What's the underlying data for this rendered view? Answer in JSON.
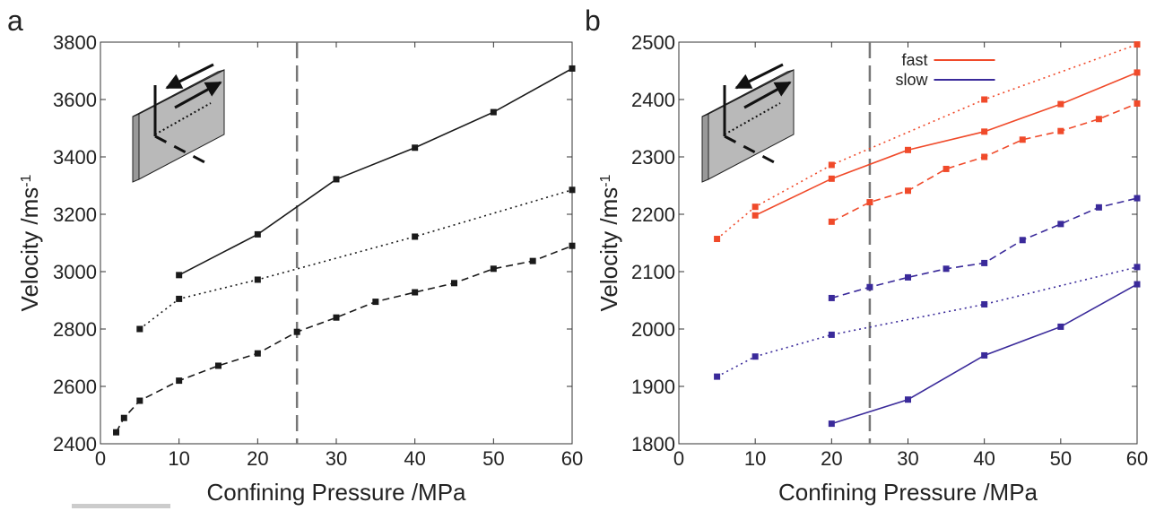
{
  "chart_data": [
    {
      "type": "line",
      "label": "a",
      "xlabel": "Confining Pressure /MPa",
      "ylabel": "Velocity /ms",
      "ylabel_superscript": "-1",
      "xlim": [
        0,
        60
      ],
      "ylim": [
        2400,
        3800
      ],
      "xticks": [
        0,
        10,
        20,
        30,
        40,
        50,
        60
      ],
      "yticks": [
        2400,
        2600,
        2800,
        3000,
        3200,
        3400,
        3600,
        3800
      ],
      "vline": 25,
      "series": [
        {
          "color": "#1a1a1a",
          "style": "solid",
          "x": [
            10,
            20,
            30,
            40,
            50,
            60
          ],
          "values": [
            2988,
            3130,
            3322,
            3432,
            3556,
            3708
          ]
        },
        {
          "color": "#1a1a1a",
          "style": "dotted",
          "x": [
            5,
            10,
            20,
            40,
            60
          ],
          "values": [
            2800,
            2905,
            2972,
            3122,
            3285
          ]
        },
        {
          "color": "#1a1a1a",
          "style": "dashed",
          "x": [
            2,
            3,
            5,
            10,
            15,
            20,
            25,
            30,
            35,
            40,
            45,
            50,
            55,
            60
          ],
          "values": [
            2440,
            2490,
            2550,
            2620,
            2672,
            2715,
            2790,
            2840,
            2895,
            2928,
            2960,
            3010,
            3037,
            3090
          ]
        }
      ]
    },
    {
      "type": "line",
      "label": "b",
      "xlabel": "Confining Pressure /MPa",
      "ylabel": "Velocity /ms",
      "ylabel_superscript": "-1",
      "xlim": [
        0,
        60
      ],
      "ylim": [
        1800,
        2500
      ],
      "xticks": [
        0,
        10,
        20,
        30,
        40,
        50,
        60
      ],
      "yticks": [
        1800,
        1900,
        2000,
        2100,
        2200,
        2300,
        2400,
        2500
      ],
      "vline": 25,
      "legend": "upper center",
      "series": [
        {
          "name": "fast",
          "color": "#f04a2a",
          "style": "solid",
          "x": [
            10,
            20,
            30,
            40,
            50,
            60
          ],
          "values": [
            2198,
            2262,
            2312,
            2344,
            2392,
            2447
          ]
        },
        {
          "color": "#f04a2a",
          "style": "dotted",
          "x": [
            5,
            10,
            20,
            40,
            60
          ],
          "values": [
            2157,
            2213,
            2286,
            2400,
            2496
          ]
        },
        {
          "color": "#f04a2a",
          "style": "dashed",
          "x": [
            20,
            25,
            30,
            35,
            40,
            45,
            50,
            55,
            60
          ],
          "values": [
            2187,
            2221,
            2241,
            2279,
            2300,
            2330,
            2345,
            2366,
            2393
          ]
        },
        {
          "name": "slow",
          "color": "#3a2a9a",
          "style": "solid",
          "x": [
            20,
            30,
            40,
            50,
            60
          ],
          "values": [
            1835,
            1877,
            1954,
            2004,
            2078
          ]
        },
        {
          "color": "#3a2a9a",
          "style": "dotted",
          "x": [
            5,
            10,
            20,
            40,
            60
          ],
          "values": [
            1917,
            1952,
            1990,
            2043,
            2108
          ]
        },
        {
          "color": "#3a2a9a",
          "style": "dashed",
          "x": [
            20,
            25,
            30,
            35,
            40,
            45,
            50,
            55,
            60
          ],
          "values": [
            2054,
            2073,
            2090,
            2105,
            2115,
            2155,
            2183,
            2212,
            2228
          ]
        }
      ]
    }
  ]
}
